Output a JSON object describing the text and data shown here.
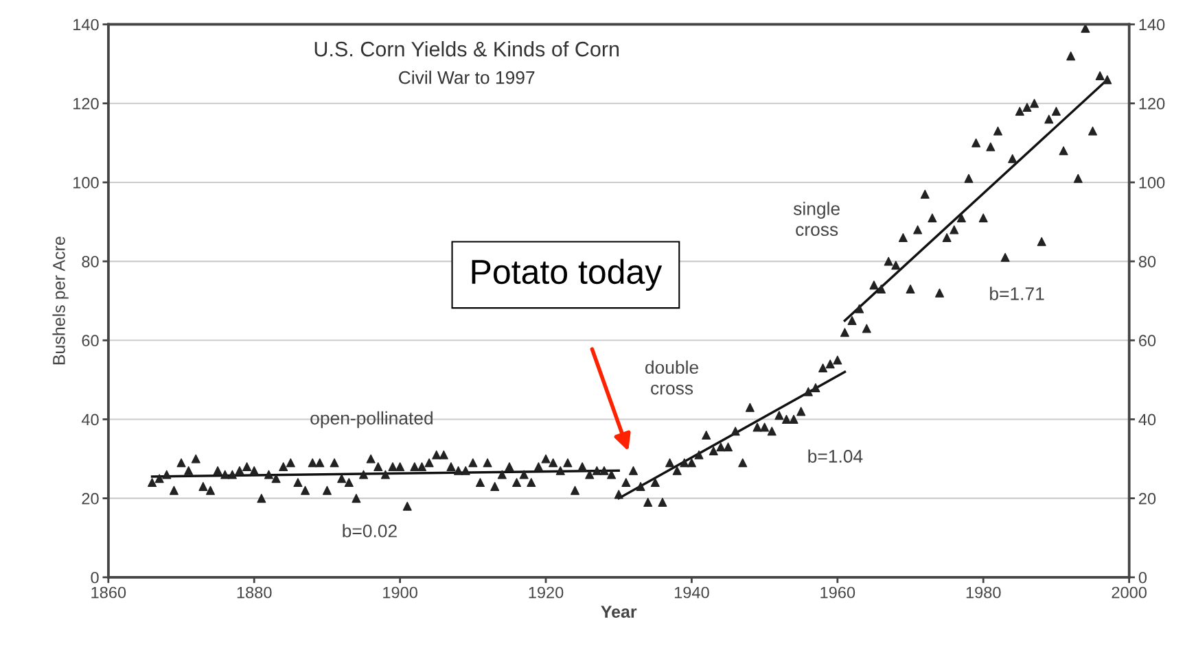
{
  "chart_data": {
    "type": "scatter",
    "title": "U.S. Corn Yields & Kinds of Corn",
    "subtitle": "Civil War to 1997",
    "xlabel": "Year",
    "ylabel": "Bushels per Acre",
    "xlim": [
      1860,
      2000
    ],
    "xticks": [
      1860,
      1880,
      1900,
      1920,
      1940,
      1960,
      1980,
      2000
    ],
    "ylim": [
      0,
      140
    ],
    "yticks": [
      0,
      20,
      40,
      60,
      80,
      100,
      120,
      140
    ],
    "y2lim": [
      0,
      140
    ],
    "y2ticks": [
      0,
      20,
      40,
      60,
      80,
      100,
      120,
      140
    ],
    "grid": "y",
    "series": [
      {
        "marker": "triangle",
        "color": "#222222",
        "x": [
          1866,
          1867,
          1868,
          1869,
          1870,
          1871,
          1872,
          1873,
          1874,
          1875,
          1876,
          1877,
          1878,
          1879,
          1880,
          1881,
          1882,
          1883,
          1884,
          1885,
          1886,
          1887,
          1888,
          1889,
          1890,
          1891,
          1892,
          1893,
          1894,
          1895,
          1896,
          1897,
          1898,
          1899,
          1900,
          1901,
          1902,
          1903,
          1904,
          1905,
          1906,
          1907,
          1908,
          1909,
          1910,
          1911,
          1912,
          1913,
          1914,
          1915,
          1916,
          1917,
          1918,
          1919,
          1920,
          1921,
          1922,
          1923,
          1924,
          1925,
          1926,
          1927,
          1928,
          1929,
          1930,
          1931,
          1932,
          1933,
          1934,
          1935,
          1936,
          1937,
          1938,
          1939,
          1940,
          1941,
          1942,
          1943,
          1944,
          1945,
          1946,
          1947,
          1948,
          1949,
          1950,
          1951,
          1952,
          1953,
          1954,
          1955,
          1956,
          1957,
          1958,
          1959,
          1960,
          1961,
          1962,
          1963,
          1964,
          1965,
          1966,
          1967,
          1968,
          1969,
          1970,
          1971,
          1972,
          1973,
          1974,
          1975,
          1976,
          1977,
          1978,
          1979,
          1980,
          1981,
          1982,
          1983,
          1984,
          1985,
          1986,
          1987,
          1988,
          1989,
          1990,
          1991,
          1992,
          1993,
          1994,
          1995,
          1996,
          1997
        ],
        "values": [
          24,
          25,
          26,
          22,
          29,
          27,
          30,
          23,
          22,
          27,
          26,
          26,
          27,
          28,
          27,
          20,
          26,
          25,
          28,
          29,
          24,
          22,
          29,
          29,
          22,
          29,
          25,
          24,
          20,
          26,
          30,
          28,
          26,
          28,
          28,
          18,
          28,
          28,
          29,
          31,
          31,
          28,
          27,
          27,
          29,
          24,
          29,
          23,
          26,
          28,
          24,
          26,
          24,
          28,
          30,
          29,
          27,
          29,
          22,
          28,
          26,
          27,
          27,
          26,
          21,
          24,
          27,
          23,
          19,
          24,
          19,
          29,
          27,
          29,
          29,
          31,
          36,
          32,
          33,
          33,
          37,
          29,
          43,
          38,
          38,
          37,
          41,
          40,
          40,
          42,
          47,
          48,
          53,
          54,
          55,
          62,
          65,
          68,
          63,
          74,
          73,
          80,
          79,
          86,
          73,
          88,
          97,
          91,
          72,
          86,
          88,
          91,
          101,
          110,
          91,
          109,
          113,
          81,
          106,
          118,
          119,
          120,
          85,
          116,
          118,
          108,
          132,
          101,
          139,
          113,
          127,
          126
        ]
      },
      {
        "type": "line",
        "marker": "none",
        "color": "#111111",
        "x": [
          1866,
          1930
        ],
        "values": [
          25.5,
          27
        ]
      },
      {
        "type": "line",
        "marker": "none",
        "color": "#111111",
        "x": [
          1930,
          1961
        ],
        "values": [
          20,
          52
        ]
      },
      {
        "type": "line",
        "marker": "none",
        "color": "#111111",
        "x": [
          1961,
          1997
        ],
        "values": [
          65,
          126
        ]
      }
    ],
    "annotations": [
      "open-pollinated",
      "b=0.02",
      "double\ncross",
      "b=1.04",
      "single\ncross",
      "b=1.71",
      "Potato today"
    ]
  }
}
